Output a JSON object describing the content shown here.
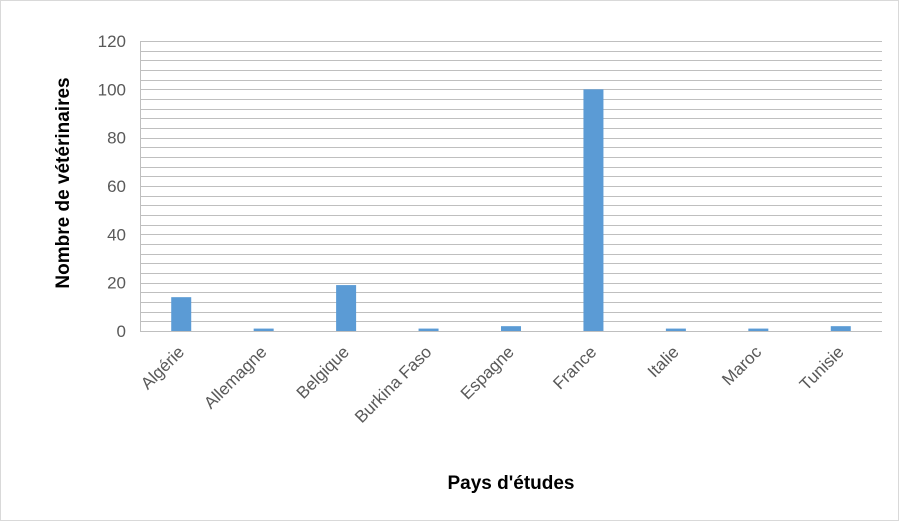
{
  "chart_data": {
    "type": "bar",
    "title": "",
    "xlabel": "Pays d'études",
    "ylabel": "Nombre de vétérinaires",
    "categories": [
      "Algérie",
      "Allemagne",
      "Belgique",
      "Burkina Faso",
      "Espagne",
      "France",
      "Italie",
      "Maroc",
      "Tunisie"
    ],
    "values": [
      14,
      1,
      19,
      1,
      2,
      100,
      1,
      1,
      2
    ],
    "ylim": [
      0,
      120
    ],
    "yticks": [
      0,
      20,
      40,
      60,
      80,
      100,
      120
    ],
    "minor_gridlines_every": 4,
    "grid": true,
    "legend": "none",
    "bar_color": "#5b9bd5",
    "grid_color": "#bfbfbf"
  }
}
